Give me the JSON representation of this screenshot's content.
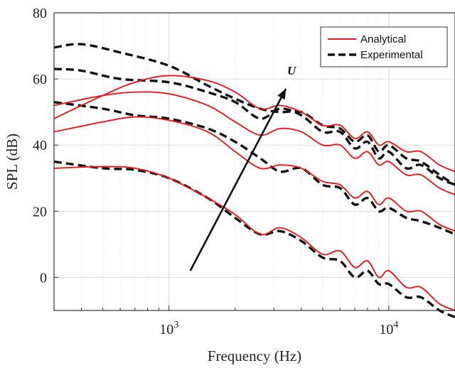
{
  "chart_data": {
    "type": "line",
    "xlabel": "Frequency (Hz)",
    "ylabel": "SPL (dB)",
    "xscale": "log",
    "xlim": [
      300,
      20000
    ],
    "ylim": [
      -10,
      80
    ],
    "yticks": [
      0,
      20,
      40,
      60,
      80
    ],
    "xticks": [
      {
        "value": 1000,
        "base": "10",
        "exp": "3"
      },
      {
        "value": 10000,
        "base": "10",
        "exp": "4"
      }
    ],
    "grid": true,
    "legend_position": "top-right",
    "legend": [
      {
        "label": "Analytical",
        "color": "#e8191f",
        "style": "solid"
      },
      {
        "label": "Experimental",
        "color": "#111111",
        "style": "dashed"
      }
    ],
    "annotation": {
      "text": "U",
      "arrow_from": [
        1250,
        2
      ],
      "arrow_to": [
        3400,
        57
      ]
    },
    "series": [
      {
        "kind": "analytical",
        "color": "#e8191f",
        "x": [
          300,
          500,
          700,
          1000,
          1500,
          2000,
          2600,
          3200,
          4000,
          5000,
          6000,
          7000,
          8000,
          9000,
          10000,
          12000,
          14000,
          17000,
          20000
        ],
        "y": [
          48,
          55,
          59,
          61,
          59.5,
          56,
          51,
          52,
          50,
          46,
          46,
          42,
          44,
          40,
          41,
          38,
          38,
          34,
          32
        ]
      },
      {
        "kind": "analytical",
        "color": "#e8191f",
        "x": [
          300,
          500,
          700,
          1000,
          1500,
          2000,
          2600,
          3200,
          4000,
          5000,
          6000,
          7000,
          8000,
          9000,
          10000,
          12000,
          14000,
          17000,
          20000
        ],
        "y": [
          44,
          47,
          48.5,
          47.5,
          44,
          38,
          33,
          34,
          33,
          29,
          28,
          24,
          26,
          22,
          24,
          20,
          20,
          16,
          14
        ]
      },
      {
        "kind": "analytical",
        "color": "#e8191f",
        "x": [
          300,
          500,
          700,
          1000,
          1500,
          2000,
          2600,
          3200,
          4000,
          5000,
          6000,
          7000,
          8000,
          9000,
          10000,
          12000,
          14000,
          17000,
          20000
        ],
        "y": [
          52,
          55,
          56,
          55.5,
          52,
          47,
          43,
          45,
          44,
          40,
          40,
          36,
          38,
          34,
          35,
          31,
          31,
          27,
          25
        ]
      },
      {
        "kind": "analytical",
        "color": "#e8191f",
        "x": [
          300,
          500,
          700,
          1000,
          1500,
          2000,
          2600,
          3200,
          4000,
          5000,
          6000,
          7000,
          8000,
          9000,
          10000,
          12000,
          14000,
          17000,
          20000
        ],
        "y": [
          33,
          33.5,
          33,
          30,
          24,
          19,
          13,
          15,
          12,
          7,
          8,
          3,
          5,
          0,
          2,
          -3,
          -3,
          -8,
          -10
        ]
      },
      {
        "kind": "experimental",
        "color": "#111111",
        "x": [
          300,
          400,
          600,
          1000,
          1500,
          2000,
          2600,
          3200,
          4000,
          5000,
          6000,
          7000,
          8000,
          9000,
          10000,
          12000,
          14000,
          17000,
          20000
        ],
        "y": [
          69.5,
          70.5,
          68,
          64,
          58,
          54,
          51,
          50,
          50,
          46,
          45,
          41,
          43,
          38,
          40,
          36,
          35,
          31,
          28
        ]
      },
      {
        "kind": "experimental",
        "color": "#111111",
        "x": [
          300,
          400,
          600,
          1000,
          1500,
          2000,
          2600,
          3200,
          4000,
          5000,
          6000,
          7000,
          8000,
          9000,
          10000,
          12000,
          14000,
          17000,
          20000
        ],
        "y": [
          63,
          62.5,
          60,
          59,
          56,
          53,
          48,
          51,
          49,
          44,
          44,
          39,
          41,
          36,
          38,
          33,
          34,
          30,
          28
        ]
      },
      {
        "kind": "experimental",
        "color": "#111111",
        "x": [
          300,
          500,
          700,
          1000,
          1500,
          2000,
          2600,
          3200,
          4000,
          5000,
          6000,
          7000,
          8000,
          9000,
          10000,
          12000,
          14000,
          17000,
          20000
        ],
        "y": [
          53,
          51,
          49,
          48,
          45,
          41,
          36,
          32,
          33,
          28,
          27,
          22,
          24,
          20,
          21,
          18,
          17,
          15,
          13
        ]
      },
      {
        "kind": "experimental",
        "color": "#111111",
        "x": [
          300,
          500,
          700,
          1000,
          1500,
          2000,
          2600,
          3200,
          4000,
          5000,
          6000,
          7000,
          8000,
          9000,
          10000,
          12000,
          14000,
          17000,
          20000
        ],
        "y": [
          35,
          33,
          32.5,
          30,
          24,
          18,
          13,
          14,
          11,
          6,
          5,
          0,
          2,
          -2,
          -2,
          -6,
          -6,
          -10,
          -12
        ]
      }
    ]
  }
}
